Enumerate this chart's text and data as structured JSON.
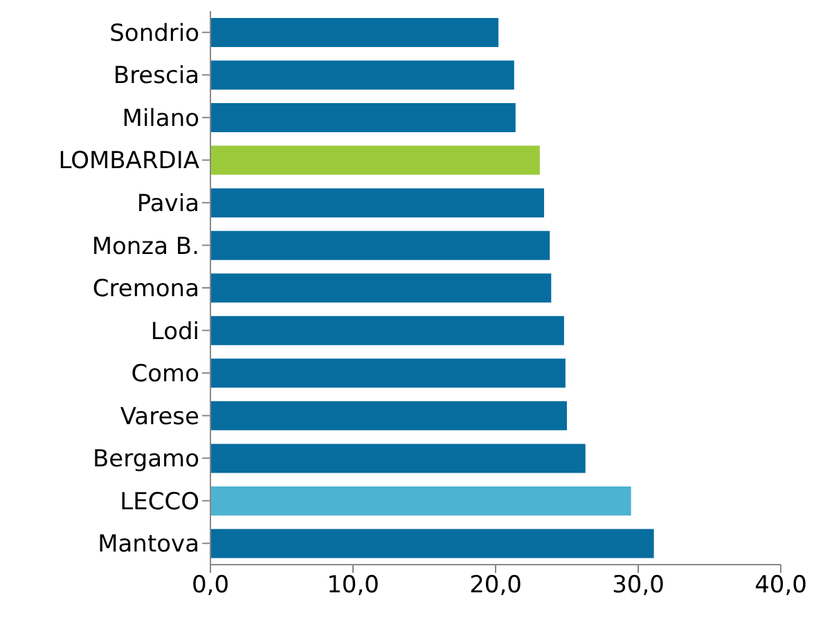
{
  "chart_data": {
    "type": "bar",
    "orientation": "horizontal",
    "categories": [
      "Sondrio",
      "Brescia",
      "Milano",
      "LOMBARDIA",
      "Pavia",
      "Monza B.",
      "Cremona",
      "Lodi",
      "Como",
      "Varese",
      "Bergamo",
      "LECCO",
      "Mantova"
    ],
    "values": [
      20.2,
      21.3,
      21.4,
      23.1,
      23.4,
      23.8,
      23.9,
      24.8,
      24.9,
      25.0,
      26.3,
      29.5,
      31.1
    ],
    "colors": [
      "#076d9f",
      "#076d9f",
      "#076d9f",
      "#9bcb3b",
      "#076d9f",
      "#076d9f",
      "#076d9f",
      "#076d9f",
      "#076d9f",
      "#076d9f",
      "#076d9f",
      "#4db3d1",
      "#076d9f"
    ],
    "xlim": [
      0,
      40
    ],
    "xticks": [
      {
        "value": 0,
        "label": "0,0"
      },
      {
        "value": 10,
        "label": "10,0"
      },
      {
        "value": 20,
        "label": "20,0"
      },
      {
        "value": 30,
        "label": "30,0"
      },
      {
        "value": 40,
        "label": "40,0"
      }
    ],
    "grid": false,
    "legend": false
  }
}
